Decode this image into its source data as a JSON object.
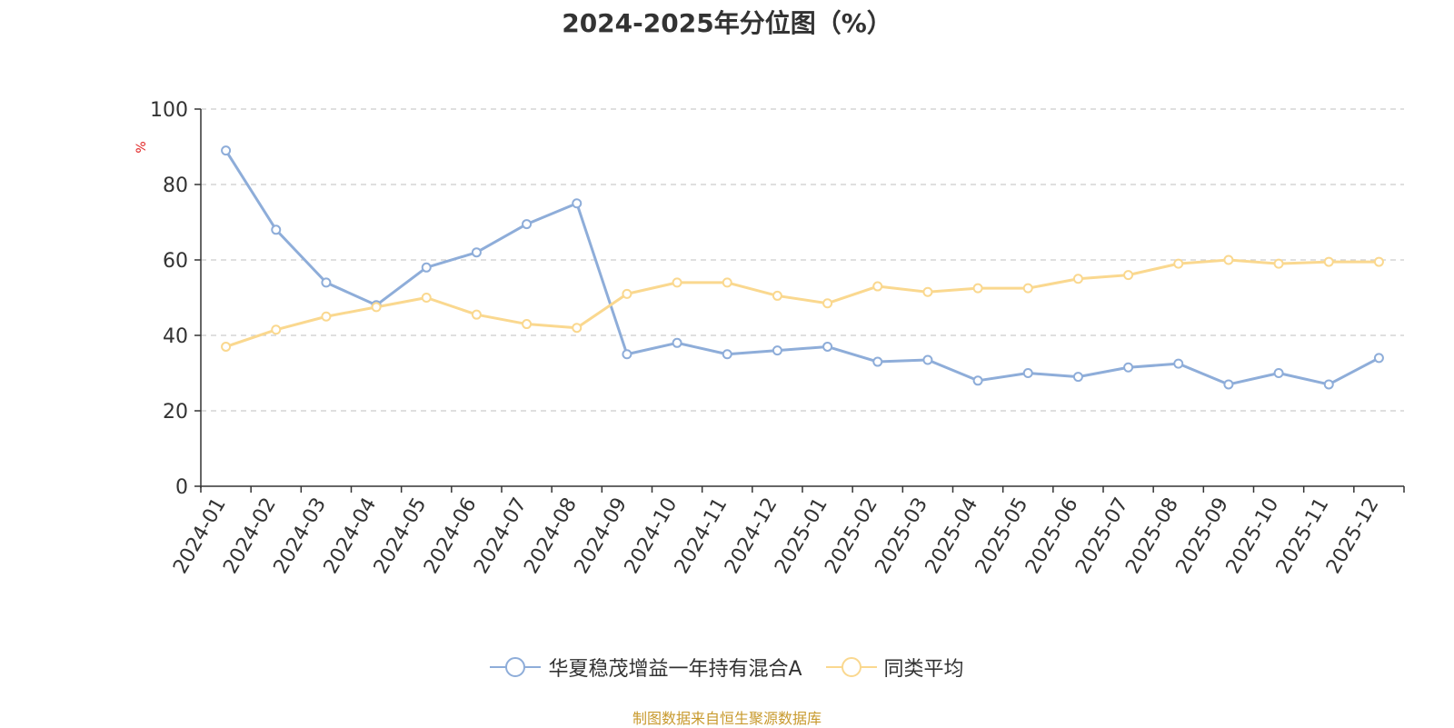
{
  "chart_data": {
    "type": "line",
    "title": "2024-2025年分位图（%）",
    "ylabel": "%",
    "xlabel": "",
    "ylim": [
      0,
      100
    ],
    "yticks": [
      0,
      20,
      40,
      60,
      80,
      100
    ],
    "grid": true,
    "legend_position": "bottom",
    "categories": [
      "2024-01",
      "2024-02",
      "2024-03",
      "2024-04",
      "2024-05",
      "2024-06",
      "2024-07",
      "2024-08",
      "2024-09",
      "2024-10",
      "2024-11",
      "2024-12",
      "2025-01",
      "2025-02",
      "2025-03",
      "2025-04",
      "2025-05",
      "2025-06",
      "2025-07",
      "2025-08",
      "2025-09",
      "2025-10",
      "2025-11",
      "2025-12"
    ],
    "series": [
      {
        "name": "华夏稳茂增益一年持有混合A",
        "color": "#8eadd9",
        "values": [
          89,
          68,
          54,
          48,
          58,
          62,
          69.5,
          75,
          35,
          38,
          35,
          36,
          37,
          33,
          33.5,
          28,
          30,
          29,
          31.5,
          32.5,
          27,
          30,
          27,
          34
        ]
      },
      {
        "name": "同类平均",
        "color": "#fad88f",
        "values": [
          37,
          41.5,
          45,
          47.5,
          50,
          45.5,
          43,
          42,
          51,
          54,
          54,
          50.5,
          48.5,
          53,
          51.5,
          52.5,
          52.5,
          55,
          56,
          59,
          60,
          59,
          59.5,
          59.5
        ]
      }
    ]
  },
  "source_note": "制图数据来自恒生聚源数据库"
}
